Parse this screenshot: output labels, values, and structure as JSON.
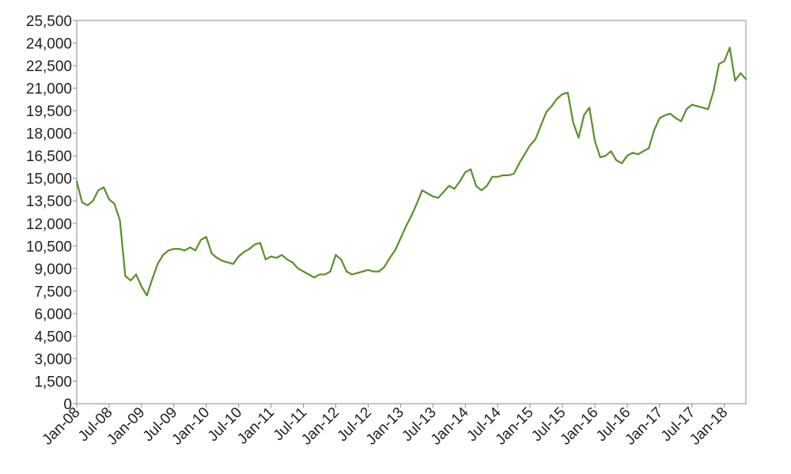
{
  "chart_data": {
    "type": "line",
    "title": "",
    "xlabel": "",
    "ylabel": "",
    "ylim": [
      0,
      25500
    ],
    "xlim": [
      "2008-01",
      "2018-05"
    ],
    "grid": false,
    "legend": "none",
    "y_ticks": [
      0,
      1500,
      3000,
      4500,
      6000,
      7500,
      9000,
      10500,
      12000,
      13500,
      15000,
      16500,
      18000,
      19500,
      21000,
      22500,
      24000,
      25500
    ],
    "y_tick_labels": [
      "0",
      "1,500",
      "3,000",
      "4,500",
      "6,000",
      "7,500",
      "9,000",
      "10,500",
      "12,000",
      "13,500",
      "15,000",
      "16,500",
      "18,000",
      "19,500",
      "21,000",
      "22,500",
      "24,000",
      "25,500"
    ],
    "x_ticks": [
      "2008-01",
      "2008-07",
      "2009-01",
      "2009-07",
      "2010-01",
      "2010-07",
      "2011-01",
      "2011-07",
      "2012-01",
      "2012-07",
      "2013-01",
      "2013-07",
      "2014-01",
      "2014-07",
      "2015-01",
      "2015-07",
      "2016-01",
      "2016-07",
      "2017-01",
      "2017-07",
      "2018-01"
    ],
    "x_tick_labels": [
      "Jan-08",
      "Jul-08",
      "Jan-09",
      "Jul-09",
      "Jan-10",
      "Jul-10",
      "Jan-11",
      "Jul-11",
      "Jan-12",
      "Jul-12",
      "Jan-13",
      "Jul-13",
      "Jan-14",
      "Jul-14",
      "Jan-15",
      "Jul-15",
      "Jan-16",
      "Jul-16",
      "Jan-17",
      "Jul-17",
      "Jan-18"
    ],
    "series": [
      {
        "color": "#5a8f29",
        "x": [
          "2008-01",
          "2008-02",
          "2008-03",
          "2008-04",
          "2008-05",
          "2008-06",
          "2008-07",
          "2008-08",
          "2008-09",
          "2008-10",
          "2008-11",
          "2008-12",
          "2009-01",
          "2009-02",
          "2009-03",
          "2009-04",
          "2009-05",
          "2009-06",
          "2009-07",
          "2009-08",
          "2009-09",
          "2009-10",
          "2009-11",
          "2009-12",
          "2010-01",
          "2010-02",
          "2010-03",
          "2010-04",
          "2010-05",
          "2010-06",
          "2010-07",
          "2010-08",
          "2010-09",
          "2010-10",
          "2010-11",
          "2010-12",
          "2011-01",
          "2011-02",
          "2011-03",
          "2011-04",
          "2011-05",
          "2011-06",
          "2011-07",
          "2011-08",
          "2011-09",
          "2011-10",
          "2011-11",
          "2011-12",
          "2012-01",
          "2012-02",
          "2012-03",
          "2012-04",
          "2012-05",
          "2012-06",
          "2012-07",
          "2012-08",
          "2012-09",
          "2012-10",
          "2012-11",
          "2012-12",
          "2013-01",
          "2013-02",
          "2013-03",
          "2013-04",
          "2013-05",
          "2013-06",
          "2013-07",
          "2013-08",
          "2013-09",
          "2013-10",
          "2013-11",
          "2013-12",
          "2014-01",
          "2014-02",
          "2014-03",
          "2014-04",
          "2014-05",
          "2014-06",
          "2014-07",
          "2014-08",
          "2014-09",
          "2014-10",
          "2014-11",
          "2014-12",
          "2015-01",
          "2015-02",
          "2015-03",
          "2015-04",
          "2015-05",
          "2015-06",
          "2015-07",
          "2015-08",
          "2015-09",
          "2015-10",
          "2015-11",
          "2015-12",
          "2016-01",
          "2016-02",
          "2016-03",
          "2016-04",
          "2016-05",
          "2016-06",
          "2016-07",
          "2016-08",
          "2016-09",
          "2016-10",
          "2016-11",
          "2016-12",
          "2017-01",
          "2017-02",
          "2017-03",
          "2017-04",
          "2017-05",
          "2017-06",
          "2017-07",
          "2017-08",
          "2017-09",
          "2017-10",
          "2017-11",
          "2017-12",
          "2018-01",
          "2018-02",
          "2018-03",
          "2018-04",
          "2018-05"
        ],
        "values": [
          14800,
          13400,
          13200,
          13500,
          14200,
          14400,
          13600,
          13300,
          12200,
          8500,
          8200,
          8600,
          7800,
          7200,
          8300,
          9300,
          9900,
          10200,
          10300,
          10300,
          10200,
          10400,
          10200,
          10900,
          11100,
          10000,
          9700,
          9500,
          9400,
          9300,
          9800,
          10100,
          10300,
          10600,
          10700,
          9600,
          9800,
          9700,
          9900,
          9600,
          9400,
          9000,
          8800,
          8600,
          8400,
          8600,
          8600,
          8800,
          9900,
          9600,
          8800,
          8600,
          8700,
          8800,
          8900,
          8800,
          8800,
          9100,
          9700,
          10200,
          11000,
          11800,
          12500,
          13300,
          14200,
          14000,
          13800,
          13700,
          14100,
          14500,
          14300,
          14800,
          15400,
          15600,
          14500,
          14200,
          14500,
          15100,
          15100,
          15200,
          15200,
          15300,
          16000,
          16600,
          17200,
          17600,
          18500,
          19400,
          19800,
          20300,
          20600,
          20700,
          18700,
          17700,
          19200,
          19700,
          17500,
          16400,
          16500,
          16800,
          16200,
          16000,
          16500,
          16700,
          16600,
          16800,
          17000,
          18200,
          19000,
          19200,
          19300,
          19000,
          18800,
          19600,
          19900,
          19800,
          19700,
          19600,
          20800,
          22600,
          22800,
          23700,
          21500,
          22000,
          21600
        ]
      }
    ]
  }
}
